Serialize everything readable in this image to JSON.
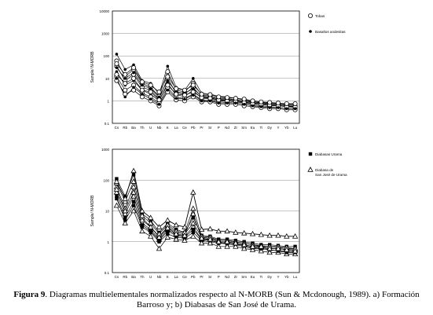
{
  "chart_data": [
    {
      "type": "line",
      "title": "",
      "ylabel": "Sample/ N-MORB",
      "yscale": "log",
      "ylim": [
        0.1,
        10000
      ],
      "yticks": [
        "10000",
        "1000",
        "100",
        "10",
        "1",
        "0.1"
      ],
      "categories": [
        "Cs",
        "Rb",
        "Ba",
        "Th",
        "U",
        "Nb",
        "K",
        "La",
        "Ce",
        "Pb",
        "Pr",
        "Sr",
        "P",
        "Nd",
        "Zr",
        "Sm",
        "Eu",
        "Ti",
        "Dy",
        "Y",
        "Yb",
        "Lu"
      ],
      "legend": [
        {
          "name": "Tobas",
          "marker": "circle-open"
        },
        {
          "name": "Basaltos andesitas",
          "marker": "dot"
        }
      ],
      "series": [
        {
          "values": [
            120,
            25,
            40,
            8,
            6,
            2,
            35,
            4,
            3,
            10,
            2.2,
            2,
            1.6,
            1.5,
            1.3,
            1.1,
            0.95,
            0.9,
            0.8,
            0.75,
            0.72,
            0.7
          ]
        },
        {
          "values": [
            60,
            12,
            25,
            6,
            4,
            1.6,
            20,
            3,
            2.5,
            6,
            1.8,
            1.7,
            1.3,
            1.3,
            1.1,
            1.0,
            0.85,
            0.85,
            0.75,
            0.7,
            0.65,
            0.6
          ]
        },
        {
          "values": [
            35,
            8,
            15,
            4,
            3,
            1.2,
            10,
            2.2,
            2,
            4,
            1.5,
            1.4,
            1.1,
            1.1,
            1.0,
            0.9,
            0.8,
            0.75,
            0.7,
            0.65,
            0.6,
            0.55
          ]
        },
        {
          "values": [
            20,
            5,
            8,
            3,
            2,
            1.0,
            6,
            1.8,
            1.6,
            3,
            1.3,
            1.2,
            1.0,
            1.0,
            0.9,
            0.8,
            0.7,
            0.7,
            0.6,
            0.6,
            0.55,
            0.5
          ]
        },
        {
          "values": [
            12,
            3,
            5,
            2.2,
            1.5,
            0.8,
            4,
            1.4,
            1.3,
            2,
            1.1,
            1.0,
            0.9,
            0.85,
            0.8,
            0.7,
            0.6,
            0.6,
            0.55,
            0.5,
            0.45,
            0.45
          ]
        },
        {
          "values": [
            8,
            2,
            3,
            1.5,
            1.0,
            0.6,
            2.5,
            1.1,
            1.0,
            1.5,
            0.9,
            0.9,
            0.7,
            0.7,
            0.7,
            0.6,
            0.55,
            0.5,
            0.45,
            0.45,
            0.4,
            0.4
          ]
        },
        {
          "values": [
            30,
            10,
            18,
            5,
            3.5,
            1.5,
            8,
            2.5,
            2.2,
            3.5,
            1.6,
            1.5,
            1.2,
            1.2,
            1.1,
            1.0,
            0.9,
            0.8,
            0.75,
            0.7,
            0.65,
            0.65
          ]
        },
        {
          "values": [
            15,
            6,
            10,
            3,
            2.5,
            1.1,
            5,
            2,
            1.8,
            2.5,
            1.4,
            1.3,
            1.1,
            1.0,
            0.95,
            0.85,
            0.75,
            0.7,
            0.65,
            0.6,
            0.55,
            0.55
          ]
        },
        {
          "values": [
            45,
            15,
            30,
            7,
            5,
            2.5,
            12,
            3.5,
            3,
            5,
            2,
            1.9,
            1.5,
            1.4,
            1.3,
            1.2,
            1.0,
            0.9,
            0.85,
            0.8,
            0.75,
            0.75
          ]
        },
        {
          "values": [
            10,
            1.5,
            4,
            2,
            1.2,
            0.7,
            3,
            1.3,
            1.2,
            1.8,
            1.0,
            1.0,
            0.8,
            0.8,
            0.8,
            0.7,
            0.6,
            0.55,
            0.5,
            0.5,
            0.45,
            0.45
          ]
        }
      ]
    },
    {
      "type": "line",
      "title": "",
      "ylabel": "Sample/ N-MORB",
      "yscale": "log",
      "ylim": [
        0.1,
        1000
      ],
      "yticks": [
        "1000",
        "100",
        "10",
        "1",
        "0.1"
      ],
      "categories": [
        "Cs",
        "Rb",
        "Ba",
        "Th",
        "U",
        "Nb",
        "K",
        "La",
        "Ce",
        "Pb",
        "Pr",
        "Sr",
        "P",
        "Nd",
        "Zr",
        "Sm",
        "Eu",
        "Ti",
        "Dy",
        "Y",
        "Yb",
        "Lu"
      ],
      "legend": [
        {
          "name": "Diabasas Urama",
          "marker": "square"
        },
        {
          "name": "Diabasa de San José de Urama",
          "marker": "triangle-open"
        }
      ],
      "series": [
        {
          "values": [
            110,
            30,
            150,
            8,
            5,
            2,
            4,
            2.5,
            2,
            6,
            1.6,
            1.5,
            1.2,
            1.2,
            1.1,
            1.0,
            0.9,
            0.8,
            0.8,
            0.75,
            0.7,
            0.7
          ]
        },
        {
          "values": [
            60,
            12,
            60,
            6,
            3,
            1.5,
            3,
            2,
            1.8,
            4,
            1.4,
            1.3,
            1.1,
            1.1,
            1.0,
            0.9,
            0.8,
            0.7,
            0.7,
            0.65,
            0.6,
            0.6
          ]
        },
        {
          "values": [
            40,
            8,
            30,
            4,
            2.5,
            1.2,
            2.5,
            1.7,
            1.5,
            3,
            1.2,
            1.2,
            1.0,
            1.0,
            0.9,
            0.8,
            0.7,
            0.65,
            0.6,
            0.6,
            0.55,
            0.55
          ]
        },
        {
          "values": [
            25,
            5,
            15,
            3,
            2,
            1.0,
            1.8,
            1.4,
            1.3,
            2,
            1.1,
            1.0,
            0.9,
            0.85,
            0.8,
            0.7,
            0.6,
            0.6,
            0.55,
            0.5,
            0.5,
            0.45
          ]
        },
        {
          "values": [
            15,
            4,
            10,
            2.2,
            1.5,
            0.6,
            1.4,
            1.2,
            1.1,
            1.5,
            0.9,
            0.9,
            0.7,
            0.7,
            0.7,
            0.6,
            0.55,
            0.5,
            0.45,
            0.45,
            0.4,
            0.4
          ]
        },
        {
          "values": [
            80,
            20,
            90,
            7,
            4,
            1.8,
            3.5,
            2.2,
            2,
            12,
            1.5,
            1.4,
            1.1,
            1.1,
            1.0,
            0.9,
            0.8,
            0.75,
            0.7,
            0.7,
            0.65,
            0.6
          ]
        },
        {
          "values": [
            30,
            6,
            20,
            3.5,
            2.2,
            1.1,
            2.2,
            1.6,
            1.4,
            2.5,
            1.2,
            1.1,
            0.95,
            0.9,
            0.85,
            0.75,
            0.65,
            0.6,
            0.55,
            0.5,
            0.45,
            0.45
          ]
        },
        {
          "values": [
            50,
            10,
            40,
            5,
            3,
            1.4,
            2.8,
            1.8,
            1.6,
            8,
            1.3,
            1.2,
            1.0,
            1.0,
            0.9,
            0.8,
            0.7,
            0.7,
            0.6,
            0.6,
            0.55,
            0.5
          ]
        }
      ],
      "highlight_series": [
        {
          "values": [
            90,
            25,
            200,
            10,
            6,
            3,
            5,
            3.5,
            3,
            40,
            2.5,
            2.6,
            2.2,
            2.2,
            2,
            1.9,
            1.8,
            1.7,
            1.6,
            1.6,
            1.5,
            1.5
          ]
        }
      ]
    }
  ],
  "caption": {
    "label": "Figura 9",
    "text_1": ". Diagramas multielementales normalizados respecto al N-MORB (Sun & Mcdonough, 1989). a) Formación",
    "text_2": "Barroso y; b) Diabasas de San José de Urama."
  }
}
